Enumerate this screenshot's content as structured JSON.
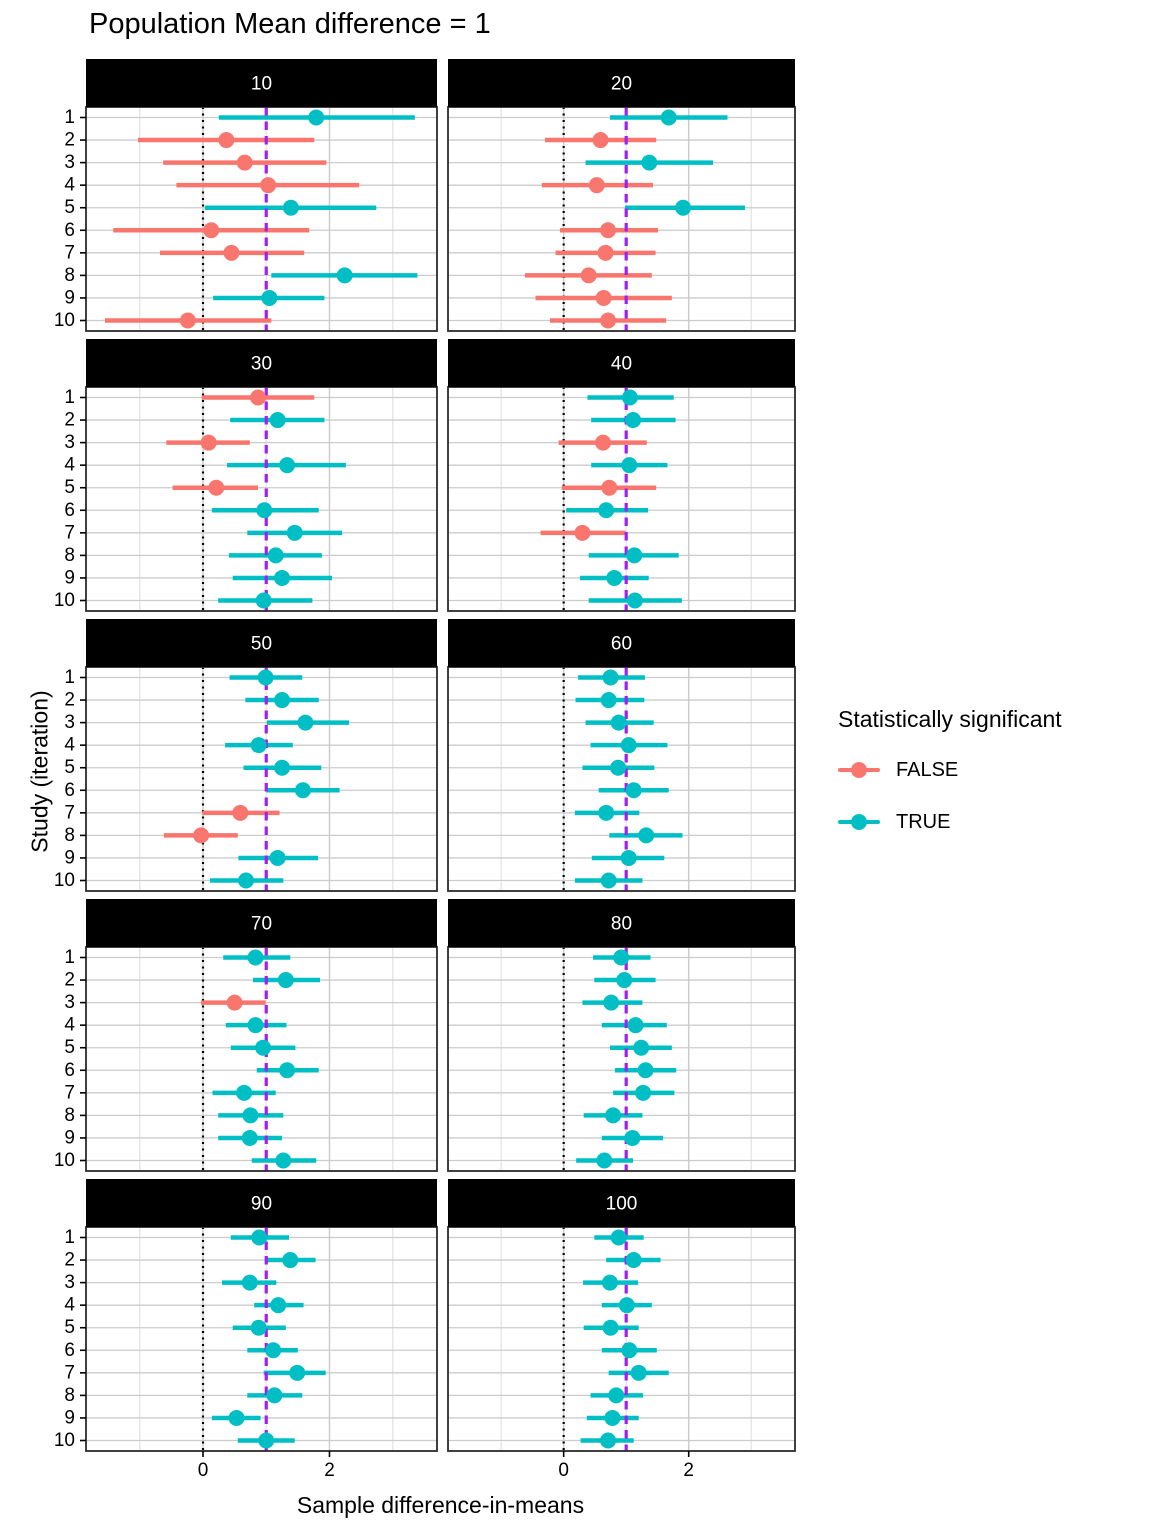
{
  "title": "Population Mean difference = 1",
  "axes": {
    "x_title": "Sample difference-in-means",
    "y_title": "Study (iteration)",
    "x_tick_labels": [
      "0",
      "2"
    ],
    "y_tick_labels": [
      "1",
      "2",
      "3",
      "4",
      "5",
      "6",
      "7",
      "8",
      "9",
      "10"
    ]
  },
  "legend": {
    "title": "Statistically significant",
    "items": [
      {
        "label": "FALSE",
        "color": "#F8766D"
      },
      {
        "label": "TRUE",
        "color": "#00BFC4"
      }
    ]
  },
  "colors": {
    "sig_false": "#F8766D",
    "sig_true": "#00BFC4",
    "ref_zero_line": "#000000",
    "ref_mean_line": "#A020F0",
    "facet_header_bg": "#000000",
    "facet_header_text": "#FFFFFF",
    "grid_major": "#CCCCCC",
    "grid_minor": "#E4E4E4",
    "panel_border": "#2B2B2B",
    "panel_bg": "#FFFFFF"
  },
  "chart_data": {
    "type": "scatter",
    "subtype": "faceted-forest-pointrange",
    "title": "Population Mean difference = 1",
    "xlabel": "Sample difference-in-means",
    "ylabel": "Study (iteration)",
    "xlim": [
      -1.85,
      3.7
    ],
    "x_major_ticks": [
      0,
      2
    ],
    "x_minor_gridlines": [
      -1,
      1,
      3
    ],
    "grid": true,
    "legend_position": "right",
    "reference_lines": [
      {
        "x": 0,
        "style": "dotted",
        "color": "#000000"
      },
      {
        "x": 1,
        "style": "dashed",
        "color": "#A020F0"
      }
    ],
    "facet_variable": "sample size",
    "facets": [
      {
        "label": "10",
        "studies": [
          {
            "iteration": 1,
            "mean": 1.79,
            "low": 0.25,
            "high": 3.35,
            "significant": true
          },
          {
            "iteration": 2,
            "mean": 0.37,
            "low": -1.03,
            "high": 1.76,
            "significant": false
          },
          {
            "iteration": 3,
            "mean": 0.66,
            "low": -0.63,
            "high": 1.95,
            "significant": false
          },
          {
            "iteration": 4,
            "mean": 1.03,
            "low": -0.42,
            "high": 2.47,
            "significant": false
          },
          {
            "iteration": 5,
            "mean": 1.39,
            "low": 0.03,
            "high": 2.74,
            "significant": true
          },
          {
            "iteration": 6,
            "mean": 0.13,
            "low": -1.42,
            "high": 1.68,
            "significant": false
          },
          {
            "iteration": 7,
            "mean": 0.45,
            "low": -0.68,
            "high": 1.6,
            "significant": false
          },
          {
            "iteration": 8,
            "mean": 2.24,
            "low": 1.08,
            "high": 3.39,
            "significant": true
          },
          {
            "iteration": 9,
            "mean": 1.05,
            "low": 0.16,
            "high": 1.92,
            "significant": true
          },
          {
            "iteration": 10,
            "mean": -0.24,
            "low": -1.55,
            "high": 1.08,
            "significant": false
          }
        ]
      },
      {
        "label": "20",
        "studies": [
          {
            "iteration": 1,
            "mean": 1.68,
            "low": 0.74,
            "high": 2.62,
            "significant": true
          },
          {
            "iteration": 2,
            "mean": 0.59,
            "low": -0.3,
            "high": 1.48,
            "significant": false
          },
          {
            "iteration": 3,
            "mean": 1.37,
            "low": 0.35,
            "high": 2.39,
            "significant": true
          },
          {
            "iteration": 4,
            "mean": 0.53,
            "low": -0.35,
            "high": 1.43,
            "significant": false
          },
          {
            "iteration": 5,
            "mean": 1.91,
            "low": 0.98,
            "high": 2.9,
            "significant": true
          },
          {
            "iteration": 6,
            "mean": 0.71,
            "low": -0.06,
            "high": 1.51,
            "significant": false
          },
          {
            "iteration": 7,
            "mean": 0.67,
            "low": -0.13,
            "high": 1.47,
            "significant": false
          },
          {
            "iteration": 8,
            "mean": 0.4,
            "low": -0.62,
            "high": 1.41,
            "significant": false
          },
          {
            "iteration": 9,
            "mean": 0.64,
            "low": -0.45,
            "high": 1.73,
            "significant": false
          },
          {
            "iteration": 10,
            "mean": 0.71,
            "low": -0.22,
            "high": 1.64,
            "significant": false
          }
        ]
      },
      {
        "label": "30",
        "studies": [
          {
            "iteration": 1,
            "mean": 0.87,
            "low": -0.02,
            "high": 1.76,
            "significant": false
          },
          {
            "iteration": 2,
            "mean": 1.18,
            "low": 0.43,
            "high": 1.92,
            "significant": true
          },
          {
            "iteration": 3,
            "mean": 0.09,
            "low": -0.58,
            "high": 0.74,
            "significant": false
          },
          {
            "iteration": 4,
            "mean": 1.33,
            "low": 0.38,
            "high": 2.26,
            "significant": true
          },
          {
            "iteration": 5,
            "mean": 0.21,
            "low": -0.48,
            "high": 0.87,
            "significant": false
          },
          {
            "iteration": 6,
            "mean": 0.97,
            "low": 0.14,
            "high": 1.83,
            "significant": true
          },
          {
            "iteration": 7,
            "mean": 1.45,
            "low": 0.7,
            "high": 2.2,
            "significant": true
          },
          {
            "iteration": 8,
            "mean": 1.15,
            "low": 0.41,
            "high": 1.88,
            "significant": true
          },
          {
            "iteration": 9,
            "mean": 1.25,
            "low": 0.47,
            "high": 2.04,
            "significant": true
          },
          {
            "iteration": 10,
            "mean": 0.96,
            "low": 0.24,
            "high": 1.73,
            "significant": true
          }
        ]
      },
      {
        "label": "40",
        "studies": [
          {
            "iteration": 1,
            "mean": 1.06,
            "low": 0.38,
            "high": 1.76,
            "significant": true
          },
          {
            "iteration": 2,
            "mean": 1.11,
            "low": 0.44,
            "high": 1.79,
            "significant": true
          },
          {
            "iteration": 3,
            "mean": 0.63,
            "low": -0.08,
            "high": 1.33,
            "significant": false
          },
          {
            "iteration": 4,
            "mean": 1.05,
            "low": 0.44,
            "high": 1.66,
            "significant": true
          },
          {
            "iteration": 5,
            "mean": 0.73,
            "low": -0.03,
            "high": 1.48,
            "significant": false
          },
          {
            "iteration": 6,
            "mean": 0.68,
            "low": 0.04,
            "high": 1.35,
            "significant": true
          },
          {
            "iteration": 7,
            "mean": 0.3,
            "low": -0.37,
            "high": 0.99,
            "significant": false
          },
          {
            "iteration": 8,
            "mean": 1.13,
            "low": 0.4,
            "high": 1.84,
            "significant": true
          },
          {
            "iteration": 9,
            "mean": 0.81,
            "low": 0.26,
            "high": 1.36,
            "significant": true
          },
          {
            "iteration": 10,
            "mean": 1.14,
            "low": 0.4,
            "high": 1.89,
            "significant": true
          }
        ]
      },
      {
        "label": "50",
        "studies": [
          {
            "iteration": 1,
            "mean": 0.99,
            "low": 0.42,
            "high": 1.57,
            "significant": true
          },
          {
            "iteration": 2,
            "mean": 1.25,
            "low": 0.67,
            "high": 1.83,
            "significant": true
          },
          {
            "iteration": 3,
            "mean": 1.62,
            "low": 1.01,
            "high": 2.31,
            "significant": true
          },
          {
            "iteration": 4,
            "mean": 0.88,
            "low": 0.35,
            "high": 1.42,
            "significant": true
          },
          {
            "iteration": 5,
            "mean": 1.25,
            "low": 0.64,
            "high": 1.87,
            "significant": true
          },
          {
            "iteration": 6,
            "mean": 1.58,
            "low": 1.0,
            "high": 2.16,
            "significant": true
          },
          {
            "iteration": 7,
            "mean": 0.59,
            "low": -0.01,
            "high": 1.21,
            "significant": false
          },
          {
            "iteration": 8,
            "mean": -0.03,
            "low": -0.62,
            "high": 0.55,
            "significant": false
          },
          {
            "iteration": 9,
            "mean": 1.18,
            "low": 0.56,
            "high": 1.82,
            "significant": true
          },
          {
            "iteration": 10,
            "mean": 0.68,
            "low": 0.11,
            "high": 1.27,
            "significant": true
          }
        ]
      },
      {
        "label": "60",
        "studies": [
          {
            "iteration": 1,
            "mean": 0.75,
            "low": 0.23,
            "high": 1.3,
            "significant": true
          },
          {
            "iteration": 2,
            "mean": 0.72,
            "low": 0.19,
            "high": 1.29,
            "significant": true
          },
          {
            "iteration": 3,
            "mean": 0.88,
            "low": 0.35,
            "high": 1.44,
            "significant": true
          },
          {
            "iteration": 4,
            "mean": 1.04,
            "low": 0.43,
            "high": 1.66,
            "significant": true
          },
          {
            "iteration": 5,
            "mean": 0.87,
            "low": 0.3,
            "high": 1.45,
            "significant": true
          },
          {
            "iteration": 6,
            "mean": 1.12,
            "low": 0.56,
            "high": 1.68,
            "significant": true
          },
          {
            "iteration": 7,
            "mean": 0.68,
            "low": 0.18,
            "high": 1.21,
            "significant": true
          },
          {
            "iteration": 8,
            "mean": 1.32,
            "low": 0.73,
            "high": 1.9,
            "significant": true
          },
          {
            "iteration": 9,
            "mean": 1.04,
            "low": 0.45,
            "high": 1.61,
            "significant": true
          },
          {
            "iteration": 10,
            "mean": 0.72,
            "low": 0.18,
            "high": 1.26,
            "significant": true
          }
        ]
      },
      {
        "label": "70",
        "studies": [
          {
            "iteration": 1,
            "mean": 0.83,
            "low": 0.32,
            "high": 1.38,
            "significant": true
          },
          {
            "iteration": 2,
            "mean": 1.31,
            "low": 0.79,
            "high": 1.85,
            "significant": true
          },
          {
            "iteration": 3,
            "mean": 0.5,
            "low": -0.03,
            "high": 0.99,
            "significant": false
          },
          {
            "iteration": 4,
            "mean": 0.83,
            "low": 0.36,
            "high": 1.32,
            "significant": true
          },
          {
            "iteration": 5,
            "mean": 0.95,
            "low": 0.44,
            "high": 1.46,
            "significant": true
          },
          {
            "iteration": 6,
            "mean": 1.33,
            "low": 0.85,
            "high": 1.83,
            "significant": true
          },
          {
            "iteration": 7,
            "mean": 0.65,
            "low": 0.15,
            "high": 1.15,
            "significant": true
          },
          {
            "iteration": 8,
            "mean": 0.75,
            "low": 0.24,
            "high": 1.27,
            "significant": true
          },
          {
            "iteration": 9,
            "mean": 0.74,
            "low": 0.24,
            "high": 1.25,
            "significant": true
          },
          {
            "iteration": 10,
            "mean": 1.27,
            "low": 0.77,
            "high": 1.79,
            "significant": true
          }
        ]
      },
      {
        "label": "80",
        "studies": [
          {
            "iteration": 1,
            "mean": 0.92,
            "low": 0.47,
            "high": 1.39,
            "significant": true
          },
          {
            "iteration": 2,
            "mean": 0.97,
            "low": 0.49,
            "high": 1.47,
            "significant": true
          },
          {
            "iteration": 3,
            "mean": 0.76,
            "low": 0.3,
            "high": 1.26,
            "significant": true
          },
          {
            "iteration": 4,
            "mean": 1.15,
            "low": 0.61,
            "high": 1.65,
            "significant": true
          },
          {
            "iteration": 5,
            "mean": 1.24,
            "low": 0.74,
            "high": 1.73,
            "significant": true
          },
          {
            "iteration": 6,
            "mean": 1.31,
            "low": 0.82,
            "high": 1.8,
            "significant": true
          },
          {
            "iteration": 7,
            "mean": 1.27,
            "low": 0.79,
            "high": 1.77,
            "significant": true
          },
          {
            "iteration": 8,
            "mean": 0.79,
            "low": 0.32,
            "high": 1.26,
            "significant": true
          },
          {
            "iteration": 9,
            "mean": 1.1,
            "low": 0.61,
            "high": 1.59,
            "significant": true
          },
          {
            "iteration": 10,
            "mean": 0.65,
            "low": 0.2,
            "high": 1.11,
            "significant": true
          }
        ]
      },
      {
        "label": "90",
        "studies": [
          {
            "iteration": 1,
            "mean": 0.89,
            "low": 0.44,
            "high": 1.36,
            "significant": true
          },
          {
            "iteration": 2,
            "mean": 1.38,
            "low": 0.99,
            "high": 1.78,
            "significant": true
          },
          {
            "iteration": 3,
            "mean": 0.74,
            "low": 0.3,
            "high": 1.16,
            "significant": true
          },
          {
            "iteration": 4,
            "mean": 1.19,
            "low": 0.81,
            "high": 1.59,
            "significant": true
          },
          {
            "iteration": 5,
            "mean": 0.88,
            "low": 0.47,
            "high": 1.31,
            "significant": true
          },
          {
            "iteration": 6,
            "mean": 1.11,
            "low": 0.7,
            "high": 1.5,
            "significant": true
          },
          {
            "iteration": 7,
            "mean": 1.49,
            "low": 0.96,
            "high": 1.94,
            "significant": true
          },
          {
            "iteration": 8,
            "mean": 1.13,
            "low": 0.7,
            "high": 1.57,
            "significant": true
          },
          {
            "iteration": 9,
            "mean": 0.53,
            "low": 0.14,
            "high": 0.91,
            "significant": true
          },
          {
            "iteration": 10,
            "mean": 1.0,
            "low": 0.55,
            "high": 1.45,
            "significant": true
          }
        ]
      },
      {
        "label": "100",
        "studies": [
          {
            "iteration": 1,
            "mean": 0.88,
            "low": 0.49,
            "high": 1.28,
            "significant": true
          },
          {
            "iteration": 2,
            "mean": 1.12,
            "low": 0.68,
            "high": 1.55,
            "significant": true
          },
          {
            "iteration": 3,
            "mean": 0.74,
            "low": 0.31,
            "high": 1.19,
            "significant": true
          },
          {
            "iteration": 4,
            "mean": 1.01,
            "low": 0.61,
            "high": 1.41,
            "significant": true
          },
          {
            "iteration": 5,
            "mean": 0.75,
            "low": 0.32,
            "high": 1.2,
            "significant": true
          },
          {
            "iteration": 6,
            "mean": 1.05,
            "low": 0.61,
            "high": 1.49,
            "significant": true
          },
          {
            "iteration": 7,
            "mean": 1.2,
            "low": 0.72,
            "high": 1.68,
            "significant": true
          },
          {
            "iteration": 8,
            "mean": 0.84,
            "low": 0.43,
            "high": 1.27,
            "significant": true
          },
          {
            "iteration": 9,
            "mean": 0.78,
            "low": 0.37,
            "high": 1.2,
            "significant": true
          },
          {
            "iteration": 10,
            "mean": 0.71,
            "low": 0.27,
            "high": 1.12,
            "significant": true
          }
        ]
      }
    ]
  }
}
